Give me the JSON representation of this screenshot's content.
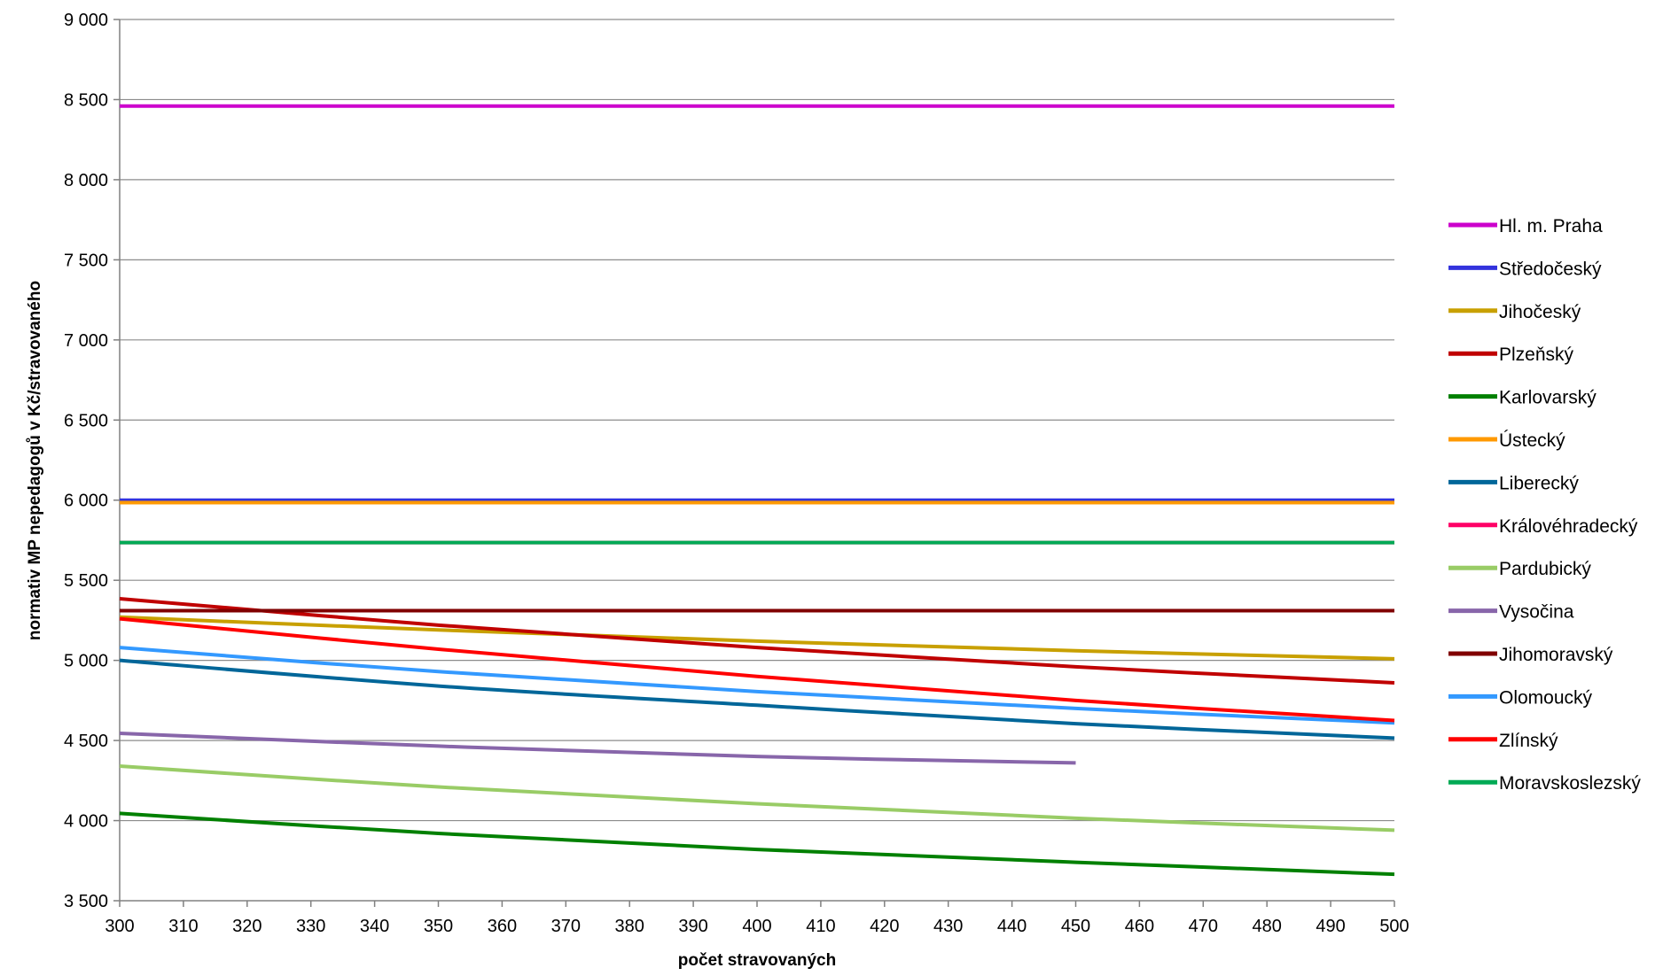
{
  "chart_data": {
    "type": "line",
    "title": "",
    "xlabel": "počet stravovaných",
    "ylabel": "normativ MP nepedagogů v Kč/stravovaného",
    "xlim": [
      300,
      500
    ],
    "ylim": [
      3500,
      9000
    ],
    "x_ticks": [
      300,
      310,
      320,
      330,
      340,
      350,
      360,
      370,
      380,
      390,
      400,
      410,
      420,
      430,
      440,
      450,
      460,
      470,
      480,
      490,
      500
    ],
    "x_tick_labels": [
      "300",
      "310",
      "320",
      "330",
      "340",
      "350",
      "360",
      "370",
      "380",
      "390",
      "400",
      "410",
      "420",
      "430",
      "440",
      "450",
      "460",
      "470",
      "480",
      "490",
      "500"
    ],
    "y_ticks": [
      3500,
      4000,
      4500,
      5000,
      5500,
      6000,
      6500,
      7000,
      7500,
      8000,
      8500,
      9000
    ],
    "y_tick_labels": [
      "3 500",
      "4 000",
      "4 500",
      "5 000",
      "5 500",
      "6 000",
      "6 500",
      "7 000",
      "7 500",
      "8 000",
      "8 500",
      "9 000"
    ],
    "grid": "horizontal",
    "legend_position": "right",
    "series": [
      {
        "name": "Hl. m. Praha",
        "color": "#CC00CC",
        "x": [
          300,
          500
        ],
        "y": [
          8460,
          8460
        ]
      },
      {
        "name": "Středočeský",
        "color": "#3333DD",
        "x": [
          300,
          500
        ],
        "y": [
          6000,
          6000
        ]
      },
      {
        "name": "Jihočeský",
        "color": "#C8A000",
        "x": [
          300,
          350,
          400,
          450,
          500
        ],
        "y": [
          5270,
          5190,
          5120,
          5060,
          5010
        ]
      },
      {
        "name": "Plzeňský",
        "color": "#C00000",
        "x": [
          300,
          350,
          400,
          450,
          500
        ],
        "y": [
          5385,
          5220,
          5080,
          4960,
          4860
        ]
      },
      {
        "name": "Karlovarský",
        "color": "#008000",
        "x": [
          300,
          350,
          400,
          450,
          500
        ],
        "y": [
          4045,
          3920,
          3820,
          3740,
          3665
        ]
      },
      {
        "name": "Ústecký",
        "color": "#FF9900",
        "x": [
          300,
          500
        ],
        "y": [
          5985,
          5985
        ]
      },
      {
        "name": "Liberecký",
        "color": "#006699",
        "x": [
          300,
          350,
          400,
          450,
          500
        ],
        "y": [
          5000,
          4840,
          4720,
          4605,
          4515
        ]
      },
      {
        "name": "Královéhradecký",
        "color": "#FF0066",
        "x": [
          300,
          500
        ],
        "y": [
          5735,
          5735
        ]
      },
      {
        "name": "Pardubický",
        "color": "#99CC66",
        "x": [
          300,
          350,
          400,
          450,
          500
        ],
        "y": [
          4340,
          4210,
          4105,
          4015,
          3940
        ]
      },
      {
        "name": "Vysočina",
        "color": "#8866AA",
        "x": [
          300,
          350,
          400,
          450
        ],
        "y": [
          4545,
          4465,
          4400,
          4360
        ]
      },
      {
        "name": "Jihomoravský",
        "color": "#800000",
        "x": [
          300,
          500
        ],
        "y": [
          5310,
          5310
        ]
      },
      {
        "name": "Olomoucký",
        "color": "#3399FF",
        "x": [
          300,
          350,
          400,
          450,
          500
        ],
        "y": [
          5080,
          4930,
          4805,
          4700,
          4610
        ]
      },
      {
        "name": "Zlínský",
        "color": "#FF0000",
        "x": [
          300,
          350,
          400,
          450,
          500
        ],
        "y": [
          5260,
          5070,
          4900,
          4750,
          4625
        ]
      },
      {
        "name": "Moravskoslezský",
        "color": "#00AA55",
        "x": [
          300,
          500
        ],
        "y": [
          5735,
          5735
        ]
      }
    ]
  }
}
